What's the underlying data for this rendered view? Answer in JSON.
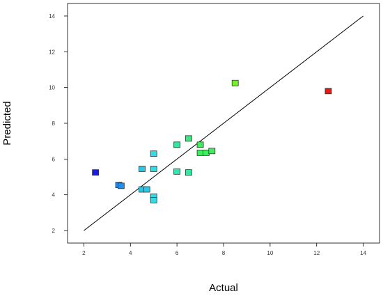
{
  "chart_data": {
    "type": "scatter",
    "title": "",
    "xlabel": "Actual",
    "ylabel": "Predicted",
    "xlim": [
      1.3,
      14.7
    ],
    "ylim": [
      1.3,
      14.7
    ],
    "xticks": [
      2,
      4,
      6,
      8,
      10,
      12,
      14
    ],
    "yticks": [
      2,
      4,
      6,
      8,
      10,
      12,
      14
    ],
    "grid": false,
    "reference_line": {
      "from": [
        2,
        2
      ],
      "to": [
        14,
        14
      ],
      "color": "#000000"
    },
    "marker": "square",
    "points": [
      {
        "x": 2.5,
        "y": 5.25,
        "color": "#1a1ae0"
      },
      {
        "x": 3.5,
        "y": 4.55,
        "color": "#1f8ef0"
      },
      {
        "x": 3.6,
        "y": 4.5,
        "color": "#1f8ef0"
      },
      {
        "x": 4.5,
        "y": 4.3,
        "color": "#28c8e8"
      },
      {
        "x": 4.7,
        "y": 4.3,
        "color": "#28c8e8"
      },
      {
        "x": 4.5,
        "y": 5.45,
        "color": "#28c8e8"
      },
      {
        "x": 5.0,
        "y": 5.45,
        "color": "#30dce8"
      },
      {
        "x": 5.0,
        "y": 6.3,
        "color": "#30dce8"
      },
      {
        "x": 5.0,
        "y": 3.9,
        "color": "#30dce8"
      },
      {
        "x": 5.0,
        "y": 3.7,
        "color": "#30dce8"
      },
      {
        "x": 6.0,
        "y": 5.3,
        "color": "#30e8b0"
      },
      {
        "x": 6.0,
        "y": 6.8,
        "color": "#30e8a0"
      },
      {
        "x": 6.5,
        "y": 5.25,
        "color": "#30e8a0"
      },
      {
        "x": 6.5,
        "y": 7.15,
        "color": "#38ea80"
      },
      {
        "x": 7.0,
        "y": 6.8,
        "color": "#40ec60"
      },
      {
        "x": 7.0,
        "y": 6.35,
        "color": "#40ec60"
      },
      {
        "x": 7.25,
        "y": 6.35,
        "color": "#40ec60"
      },
      {
        "x": 7.5,
        "y": 6.45,
        "color": "#40ec60"
      },
      {
        "x": 8.5,
        "y": 10.25,
        "color": "#78f028"
      },
      {
        "x": 12.5,
        "y": 9.8,
        "color": "#e81818"
      }
    ]
  }
}
